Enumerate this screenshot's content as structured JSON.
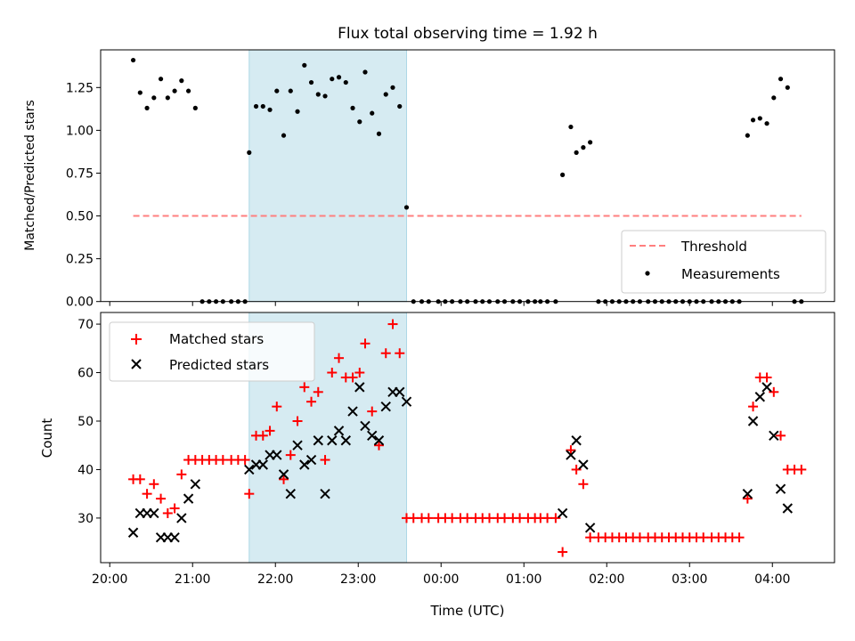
{
  "chart_data": [
    {
      "type": "scatter",
      "panel": "top",
      "title": "Flux total observing time = 1.92 h",
      "xlabel": "",
      "ylabel": "Matched/Predicted stars",
      "xlim_minutes_after_2000": [
        -6.6,
        525
      ],
      "ylim": [
        0,
        1.47
      ],
      "yticks": [
        0.0,
        0.25,
        0.5,
        0.75,
        1.0,
        1.25
      ],
      "ytick_labels": [
        "0.00",
        "0.25",
        "0.50",
        "0.75",
        "1.00",
        "1.25"
      ],
      "xticks": [
        "20:00",
        "21:00",
        "22:00",
        "23:00",
        "00:00",
        "01:00",
        "02:00",
        "03:00",
        "04:00"
      ],
      "show_xtick_labels": false,
      "grid": false,
      "legend_position": "lower-right",
      "shaded_span": {
        "start": "21:41",
        "end": "23:35",
        "color": "#add8e6"
      },
      "threshold": {
        "name": "Threshold",
        "value": 0.5,
        "start": "20:17",
        "end": "04:21",
        "color": "#ff7f7f",
        "style": "dashed"
      },
      "series": [
        {
          "name": "Measurements",
          "color": "#000000",
          "marker": "dot",
          "points": [
            [
              "20:17",
              1.41
            ],
            [
              "20:22",
              1.22
            ],
            [
              "20:27",
              1.13
            ],
            [
              "20:32",
              1.19
            ],
            [
              "20:37",
              1.3
            ],
            [
              "20:42",
              1.19
            ],
            [
              "20:47",
              1.23
            ],
            [
              "20:52",
              1.29
            ],
            [
              "20:57",
              1.23
            ],
            [
              "21:02",
              1.13
            ],
            [
              "21:07",
              0
            ],
            [
              "21:12",
              0
            ],
            [
              "21:17",
              0
            ],
            [
              "21:22",
              0
            ],
            [
              "21:28",
              0
            ],
            [
              "21:33",
              0
            ],
            [
              "21:38",
              0
            ],
            [
              "21:41",
              0.87
            ],
            [
              "21:46",
              1.14
            ],
            [
              "21:51",
              1.14
            ],
            [
              "21:56",
              1.12
            ],
            [
              "22:01",
              1.23
            ],
            [
              "22:06",
              0.97
            ],
            [
              "22:11",
              1.23
            ],
            [
              "22:16",
              1.11
            ],
            [
              "22:21",
              1.38
            ],
            [
              "22:26",
              1.28
            ],
            [
              "22:31",
              1.21
            ],
            [
              "22:36",
              1.2
            ],
            [
              "22:41",
              1.3
            ],
            [
              "22:46",
              1.31
            ],
            [
              "22:51",
              1.28
            ],
            [
              "22:56",
              1.13
            ],
            [
              "23:01",
              1.05
            ],
            [
              "23:05",
              1.34
            ],
            [
              "23:10",
              1.1
            ],
            [
              "23:15",
              0.98
            ],
            [
              "23:20",
              1.21
            ],
            [
              "23:25",
              1.25
            ],
            [
              "23:30",
              1.14
            ],
            [
              "23:35",
              0.55
            ],
            [
              "23:40",
              0
            ],
            [
              "23:46",
              0
            ],
            [
              "23:51",
              0
            ],
            [
              "23:58",
              0
            ],
            [
              "00:03",
              0
            ],
            [
              "00:08",
              0
            ],
            [
              "00:14",
              0
            ],
            [
              "00:19",
              0
            ],
            [
              "00:25",
              0
            ],
            [
              "00:30",
              0
            ],
            [
              "00:35",
              0
            ],
            [
              "00:41",
              0
            ],
            [
              "00:46",
              0
            ],
            [
              "00:52",
              0
            ],
            [
              "00:57",
              0
            ],
            [
              "01:03",
              0
            ],
            [
              "01:08",
              0
            ],
            [
              "01:12",
              0
            ],
            [
              "01:17",
              0
            ],
            [
              "01:23",
              0
            ],
            [
              "01:28",
              0.74
            ],
            [
              "01:34",
              1.02
            ],
            [
              "01:38",
              0.87
            ],
            [
              "01:43",
              0.9
            ],
            [
              "01:48",
              0.93
            ],
            [
              "01:54",
              0
            ],
            [
              "01:59",
              0
            ],
            [
              "02:04",
              0
            ],
            [
              "02:09",
              0
            ],
            [
              "02:14",
              0
            ],
            [
              "02:19",
              0
            ],
            [
              "02:24",
              0
            ],
            [
              "02:30",
              0
            ],
            [
              "02:35",
              0
            ],
            [
              "02:40",
              0
            ],
            [
              "02:45",
              0
            ],
            [
              "02:50",
              0
            ],
            [
              "02:55",
              0
            ],
            [
              "03:00",
              0
            ],
            [
              "03:05",
              0
            ],
            [
              "03:10",
              0
            ],
            [
              "03:16",
              0
            ],
            [
              "03:21",
              0
            ],
            [
              "03:26",
              0
            ],
            [
              "03:31",
              0
            ],
            [
              "03:36",
              0
            ],
            [
              "03:42",
              0.97
            ],
            [
              "03:46",
              1.06
            ],
            [
              "03:51",
              1.07
            ],
            [
              "03:56",
              1.04
            ],
            [
              "04:01",
              1.19
            ],
            [
              "04:06",
              1.3
            ],
            [
              "04:11",
              1.25
            ],
            [
              "04:16",
              0
            ],
            [
              "04:21",
              0
            ]
          ]
        }
      ]
    },
    {
      "type": "scatter",
      "panel": "bottom",
      "title": "",
      "xlabel": "Time (UTC)",
      "ylabel": "Count",
      "xlim_minutes_after_2000": [
        -6.6,
        525
      ],
      "ylim": [
        20.8,
        72.4
      ],
      "yticks": [
        30,
        40,
        50,
        60,
        70
      ],
      "ytick_labels": [
        "30",
        "40",
        "50",
        "60",
        "70"
      ],
      "xticks": [
        "20:00",
        "21:00",
        "22:00",
        "23:00",
        "00:00",
        "01:00",
        "02:00",
        "03:00",
        "04:00"
      ],
      "show_xtick_labels": true,
      "grid": false,
      "legend_position": "upper-left",
      "shaded_span": {
        "start": "21:41",
        "end": "23:35",
        "color": "#add8e6"
      },
      "series": [
        {
          "name": "Matched stars",
          "color": "#ff0000",
          "marker": "plus",
          "points": [
            [
              "20:17",
              38
            ],
            [
              "20:22",
              38
            ],
            [
              "20:27",
              35
            ],
            [
              "20:32",
              37
            ],
            [
              "20:37",
              34
            ],
            [
              "20:42",
              31
            ],
            [
              "20:47",
              32
            ],
            [
              "20:52",
              39
            ],
            [
              "20:57",
              42
            ],
            [
              "21:02",
              42
            ],
            [
              "21:07",
              42
            ],
            [
              "21:12",
              42
            ],
            [
              "21:17",
              42
            ],
            [
              "21:22",
              42
            ],
            [
              "21:28",
              42
            ],
            [
              "21:33",
              42
            ],
            [
              "21:38",
              42
            ],
            [
              "21:41",
              35
            ],
            [
              "21:46",
              47
            ],
            [
              "21:51",
              47
            ],
            [
              "21:56",
              48
            ],
            [
              "22:01",
              53
            ],
            [
              "22:06",
              38
            ],
            [
              "22:11",
              43
            ],
            [
              "22:16",
              50
            ],
            [
              "22:21",
              57
            ],
            [
              "22:26",
              54
            ],
            [
              "22:31",
              56
            ],
            [
              "22:36",
              42
            ],
            [
              "22:41",
              60
            ],
            [
              "22:46",
              63
            ],
            [
              "22:51",
              59
            ],
            [
              "22:56",
              59
            ],
            [
              "23:01",
              60
            ],
            [
              "23:05",
              66
            ],
            [
              "23:10",
              52
            ],
            [
              "23:15",
              45
            ],
            [
              "23:20",
              64
            ],
            [
              "23:25",
              70
            ],
            [
              "23:30",
              64
            ],
            [
              "23:35",
              30
            ],
            [
              "23:40",
              30
            ],
            [
              "23:46",
              30
            ],
            [
              "23:51",
              30
            ],
            [
              "23:58",
              30
            ],
            [
              "00:03",
              30
            ],
            [
              "00:08",
              30
            ],
            [
              "00:14",
              30
            ],
            [
              "00:19",
              30
            ],
            [
              "00:25",
              30
            ],
            [
              "00:30",
              30
            ],
            [
              "00:35",
              30
            ],
            [
              "00:41",
              30
            ],
            [
              "00:46",
              30
            ],
            [
              "00:52",
              30
            ],
            [
              "00:57",
              30
            ],
            [
              "01:03",
              30
            ],
            [
              "01:08",
              30
            ],
            [
              "01:12",
              30
            ],
            [
              "01:17",
              30
            ],
            [
              "01:23",
              30
            ],
            [
              "01:28",
              23
            ],
            [
              "01:34",
              44
            ],
            [
              "01:38",
              40
            ],
            [
              "01:43",
              37
            ],
            [
              "01:48",
              26
            ],
            [
              "01:54",
              26
            ],
            [
              "01:59",
              26
            ],
            [
              "02:04",
              26
            ],
            [
              "02:09",
              26
            ],
            [
              "02:14",
              26
            ],
            [
              "02:19",
              26
            ],
            [
              "02:24",
              26
            ],
            [
              "02:30",
              26
            ],
            [
              "02:35",
              26
            ],
            [
              "02:40",
              26
            ],
            [
              "02:45",
              26
            ],
            [
              "02:50",
              26
            ],
            [
              "02:55",
              26
            ],
            [
              "03:00",
              26
            ],
            [
              "03:05",
              26
            ],
            [
              "03:10",
              26
            ],
            [
              "03:16",
              26
            ],
            [
              "03:21",
              26
            ],
            [
              "03:26",
              26
            ],
            [
              "03:31",
              26
            ],
            [
              "03:36",
              26
            ],
            [
              "03:42",
              34
            ],
            [
              "03:46",
              53
            ],
            [
              "03:51",
              59
            ],
            [
              "03:56",
              59
            ],
            [
              "04:01",
              56
            ],
            [
              "04:06",
              47
            ],
            [
              "04:11",
              40
            ],
            [
              "04:16",
              40
            ],
            [
              "04:21",
              40
            ]
          ]
        },
        {
          "name": "Predicted stars",
          "color": "#000000",
          "marker": "x",
          "points": [
            [
              "20:17",
              27
            ],
            [
              "20:22",
              31
            ],
            [
              "20:27",
              31
            ],
            [
              "20:32",
              31
            ],
            [
              "20:37",
              26
            ],
            [
              "20:42",
              26
            ],
            [
              "20:47",
              26
            ],
            [
              "20:52",
              30
            ],
            [
              "20:57",
              34
            ],
            [
              "21:02",
              37
            ],
            [
              "21:41",
              40
            ],
            [
              "21:46",
              41
            ],
            [
              "21:51",
              41
            ],
            [
              "21:56",
              43
            ],
            [
              "22:01",
              43
            ],
            [
              "22:06",
              39
            ],
            [
              "22:11",
              35
            ],
            [
              "22:16",
              45
            ],
            [
              "22:21",
              41
            ],
            [
              "22:26",
              42
            ],
            [
              "22:31",
              46
            ],
            [
              "22:36",
              35
            ],
            [
              "22:41",
              46
            ],
            [
              "22:46",
              48
            ],
            [
              "22:51",
              46
            ],
            [
              "22:56",
              52
            ],
            [
              "23:01",
              57
            ],
            [
              "23:05",
              49
            ],
            [
              "23:10",
              47
            ],
            [
              "23:15",
              46
            ],
            [
              "23:20",
              53
            ],
            [
              "23:25",
              56
            ],
            [
              "23:30",
              56
            ],
            [
              "23:35",
              54
            ],
            [
              "01:28",
              31
            ],
            [
              "01:34",
              43
            ],
            [
              "01:38",
              46
            ],
            [
              "01:43",
              41
            ],
            [
              "01:48",
              28
            ],
            [
              "03:42",
              35
            ],
            [
              "03:46",
              50
            ],
            [
              "03:51",
              55
            ],
            [
              "03:56",
              57
            ],
            [
              "04:01",
              47
            ],
            [
              "04:06",
              36
            ],
            [
              "04:11",
              32
            ]
          ]
        }
      ]
    }
  ]
}
